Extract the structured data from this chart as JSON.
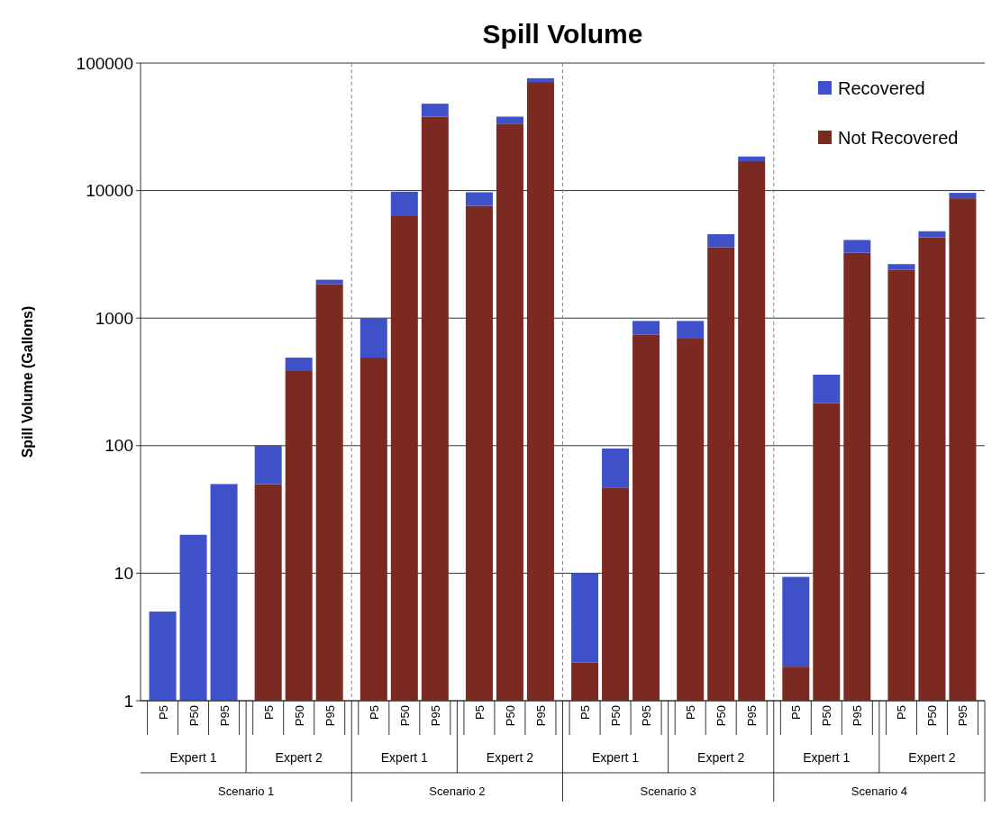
{
  "chart_data": {
    "type": "bar",
    "title": "Spill Volume",
    "ylabel": "Spill Volume (Gallons)",
    "stacked": true,
    "log": true,
    "grid": "y",
    "legend": "top right",
    "categories": [
      "P5",
      "P50",
      "P95",
      "P5",
      "P50",
      "P95",
      "P5",
      "P50",
      "P95",
      "P5",
      "P50",
      "P95",
      "P5",
      "P50",
      "P95",
      "P5",
      "P50",
      "P95",
      "P5",
      "P50",
      "P95",
      "P5",
      "P50",
      "P95"
    ],
    "series": [
      {
        "name": "Not Recovered",
        "color": "#7b2a22",
        "values": [
          null,
          null,
          null,
          50,
          390,
          1850,
          490,
          6300,
          38000,
          7600,
          33500,
          71000,
          2,
          47,
          740,
          690,
          3600,
          17000,
          1.85,
          215,
          3250,
          2400,
          4300,
          8700
        ]
      },
      {
        "name": "Recovered",
        "color": "#3f51c8",
        "values": [
          5,
          20,
          50,
          50,
          100,
          150,
          510,
          3500,
          10000,
          2100,
          4500,
          5000,
          8,
          48,
          210,
          260,
          950,
          1500,
          7.5,
          145,
          850,
          250,
          500,
          900
        ]
      }
    ],
    "ylim": [
      1,
      100000
    ],
    "yticks": [
      1,
      10,
      100,
      1000,
      10000,
      100000
    ],
    "annotations": [
      "Expert 1",
      "Expert 2",
      "Expert 1",
      "Expert 2",
      "Expert 1",
      "Expert 2",
      "Expert 1",
      "Expert 2",
      "Scenario 1",
      "Scenario 2",
      "Scenario 3",
      "Scenario 4"
    ]
  }
}
